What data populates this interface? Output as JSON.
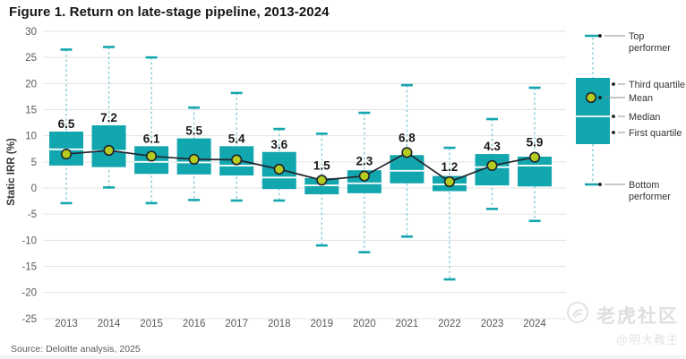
{
  "header": {
    "title": "Figure 1. Return on late-stage pipeline, 2013-2024"
  },
  "chart_data": {
    "type": "boxplot",
    "title": "Figure 1. Return on late-stage pipeline, 2013-2024",
    "xlabel": "",
    "ylabel": "Static IRR (%)",
    "ylim": [
      -25,
      30
    ],
    "ytick_step": 5,
    "grid": true,
    "legend_position": "right",
    "mean_trend_line": true,
    "categories": [
      "2013",
      "2014",
      "2015",
      "2016",
      "2017",
      "2018",
      "2019",
      "2020",
      "2021",
      "2022",
      "2023",
      "2024"
    ],
    "series": [
      {
        "year": "2013",
        "whisker_high": 26.5,
        "q3": 10.8,
        "median": 7.4,
        "mean": 6.5,
        "q1": 4.3,
        "whisker_low": -2.9,
        "mean_label": "6.5"
      },
      {
        "year": "2014",
        "whisker_high": 27.0,
        "q3": 12.0,
        "median": 7.1,
        "mean": 7.2,
        "q1": 4.0,
        "whisker_low": 0.1,
        "mean_label": "7.2"
      },
      {
        "year": "2015",
        "whisker_high": 25.0,
        "q3": 8.0,
        "median": 5.0,
        "mean": 6.1,
        "q1": 2.7,
        "whisker_low": -2.9,
        "mean_label": "6.1"
      },
      {
        "year": "2016",
        "whisker_high": 15.4,
        "q3": 9.5,
        "median": 4.9,
        "mean": 5.5,
        "q1": 2.6,
        "whisker_low": -2.3,
        "mean_label": "5.5"
      },
      {
        "year": "2017",
        "whisker_high": 18.2,
        "q3": 8.0,
        "median": 4.3,
        "mean": 5.4,
        "q1": 2.4,
        "whisker_low": -2.4,
        "mean_label": "5.4"
      },
      {
        "year": "2018",
        "whisker_high": 11.3,
        "q3": 6.9,
        "median": 2.0,
        "mean": 3.6,
        "q1": -0.2,
        "whisker_low": -2.4,
        "mean_label": "3.6"
      },
      {
        "year": "2019",
        "whisker_high": 10.4,
        "q3": 1.9,
        "median": 0.5,
        "mean": 1.5,
        "q1": -1.2,
        "whisker_low": -11.0,
        "mean_label": "1.5"
      },
      {
        "year": "2020",
        "whisker_high": 14.4,
        "q3": 3.4,
        "median": 0.9,
        "mean": 2.3,
        "q1": -1.0,
        "whisker_low": -12.3,
        "mean_label": "2.3"
      },
      {
        "year": "2021",
        "whisker_high": 19.7,
        "q3": 6.3,
        "median": 3.3,
        "mean": 6.8,
        "q1": 0.9,
        "whisker_low": -9.3,
        "mean_label": "6.8"
      },
      {
        "year": "2022",
        "whisker_high": 7.7,
        "q3": 2.3,
        "median": 0.7,
        "mean": 1.2,
        "q1": -0.6,
        "whisker_low": -17.5,
        "mean_label": "1.2"
      },
      {
        "year": "2023",
        "whisker_high": 13.2,
        "q3": 6.5,
        "median": 4.0,
        "mean": 4.3,
        "q1": 0.5,
        "whisker_low": -4.0,
        "mean_label": "4.3"
      },
      {
        "year": "2024",
        "whisker_high": 19.2,
        "q3": 6.0,
        "median": 4.3,
        "mean": 5.9,
        "q1": 0.3,
        "whisker_low": -6.3,
        "mean_label": "5.9"
      }
    ]
  },
  "legend": {
    "items": [
      "Top performer",
      "Third quartile",
      "Mean",
      "Median",
      "First quartile",
      "Bottom performer"
    ]
  },
  "colors": {
    "box_teal": "#12a6ae",
    "whisker_dash_teal": "#74c9cd",
    "whisker_cap_teal": "#14a6ae",
    "mean_dot_green": "#b5cb1f",
    "mean_line_dark": "#23252f",
    "median_white": "#ffffff",
    "grid_gray": "#e3e3e3",
    "axis_text_gray": "#5a5a5a",
    "label_dark": "#191919",
    "leader_gray": "#8c8c8c"
  },
  "footer": {
    "source": "Source: Deloitte analysis, 2025"
  },
  "watermark": {
    "brand": "老虎社区",
    "user": "@明大教主"
  }
}
